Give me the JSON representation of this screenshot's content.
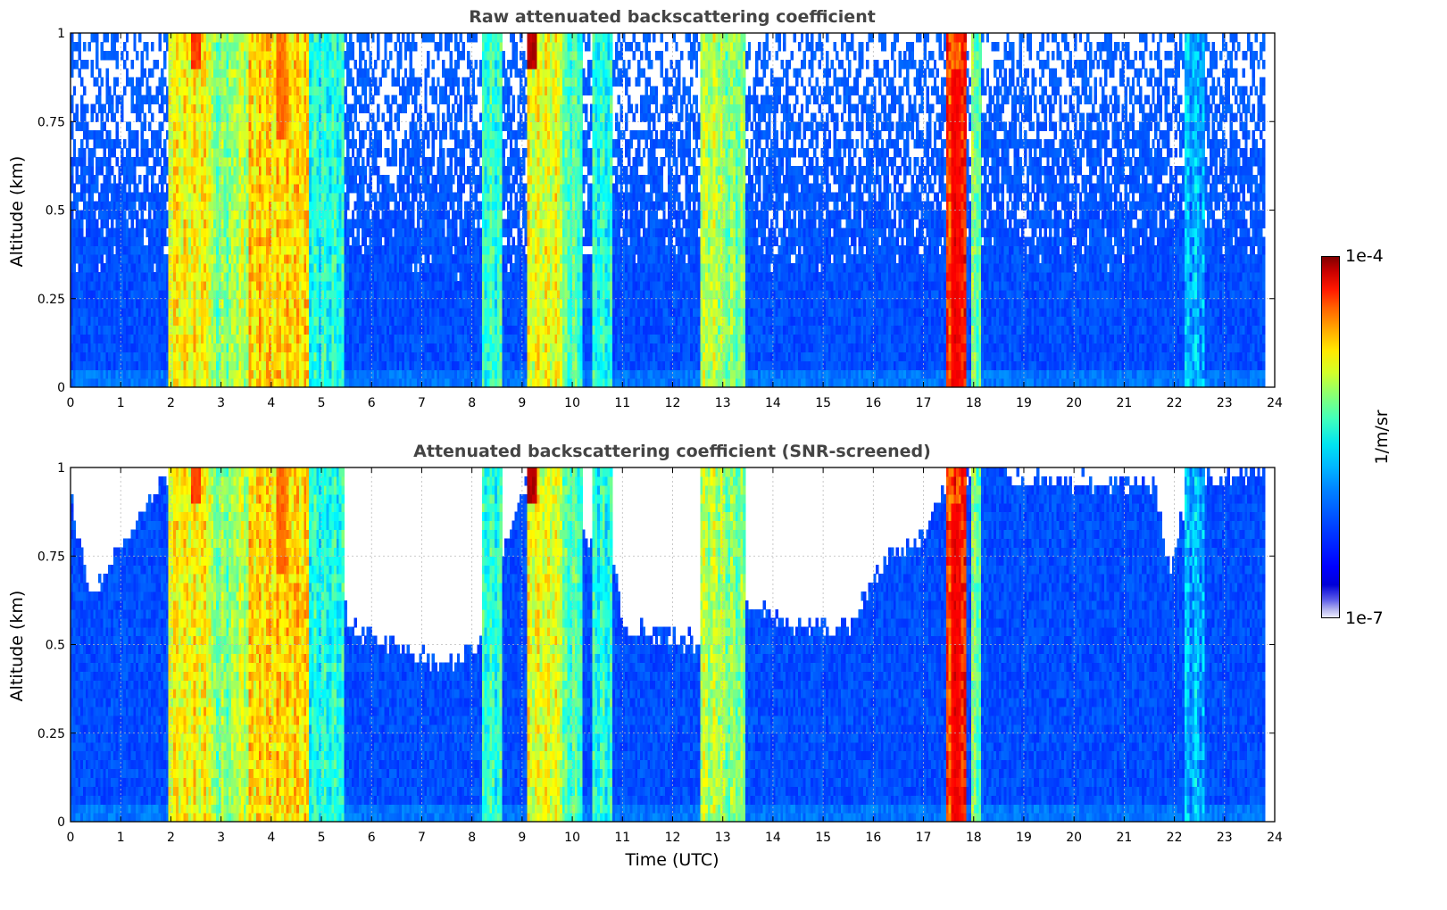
{
  "chart_data": [
    {
      "type": "heatmap",
      "title": "Raw attenuated backscattering coefficient",
      "xlabel": "",
      "ylabel": "Altitude (km)",
      "xlim": [
        0,
        24
      ],
      "ylim": [
        0,
        1
      ],
      "x_ticks": [
        "0",
        "1",
        "2",
        "3",
        "4",
        "5",
        "6",
        "7",
        "8",
        "9",
        "10",
        "11",
        "12",
        "13",
        "14",
        "15",
        "16",
        "17",
        "18",
        "19",
        "20",
        "21",
        "22",
        "23",
        "24"
      ],
      "y_ticks": [
        "0",
        "0.25",
        "0.5",
        "0.75",
        "1"
      ],
      "grid": true,
      "data_end_time": 23.8,
      "screening": "none",
      "events": [
        {
          "start": 1.95,
          "end": 2.8,
          "intensity": 0.62
        },
        {
          "start": 2.8,
          "end": 3.25,
          "intensity": 0.5
        },
        {
          "start": 3.25,
          "end": 3.55,
          "intensity": 0.56
        },
        {
          "start": 3.55,
          "end": 4.75,
          "intensity": 0.66
        },
        {
          "start": 4.75,
          "end": 5.45,
          "intensity": 0.4
        },
        {
          "start": 8.2,
          "end": 8.6,
          "intensity": 0.42
        },
        {
          "start": 9.1,
          "end": 9.8,
          "intensity": 0.6
        },
        {
          "start": 9.8,
          "end": 10.2,
          "intensity": 0.45
        },
        {
          "start": 10.4,
          "end": 10.8,
          "intensity": 0.4
        },
        {
          "start": 12.55,
          "end": 13.0,
          "intensity": 0.55
        },
        {
          "start": 13.0,
          "end": 13.45,
          "intensity": 0.5
        },
        {
          "start": 17.45,
          "end": 17.85,
          "intensity": 0.82
        },
        {
          "start": 17.95,
          "end": 18.15,
          "intensity": 0.48
        },
        {
          "start": 22.2,
          "end": 22.6,
          "intensity": 0.3
        }
      ],
      "hotspots": [
        {
          "time": 2.5,
          "alt_min": 0.9,
          "alt_max": 1.0,
          "intensity": 0.85
        },
        {
          "time": 4.2,
          "alt_min": 0.7,
          "alt_max": 1.0,
          "intensity": 0.8
        },
        {
          "time": 9.2,
          "alt_min": 0.9,
          "alt_max": 1.0,
          "intensity": 0.98
        },
        {
          "time": 17.65,
          "alt_min": 0.0,
          "alt_max": 0.9,
          "intensity": 0.9
        }
      ]
    },
    {
      "type": "heatmap",
      "title": "Attenuated backscattering coefficient (SNR-screened)",
      "xlabel": "Time (UTC)",
      "ylabel": "Altitude (km)",
      "xlim": [
        0,
        24
      ],
      "ylim": [
        0,
        1
      ],
      "x_ticks": [
        "0",
        "1",
        "2",
        "3",
        "4",
        "5",
        "6",
        "7",
        "8",
        "9",
        "10",
        "11",
        "12",
        "13",
        "14",
        "15",
        "16",
        "17",
        "18",
        "19",
        "20",
        "21",
        "22",
        "23",
        "24"
      ],
      "y_ticks": [
        "0",
        "0.25",
        "0.5",
        "0.75",
        "1"
      ],
      "grid": true,
      "data_end_time": 23.8,
      "screening": "snr",
      "screen_threshold_profile": [
        {
          "time": 0.0,
          "alt": 0.92
        },
        {
          "time": 0.4,
          "alt": 0.62
        },
        {
          "time": 1.0,
          "alt": 0.78
        },
        {
          "time": 1.8,
          "alt": 0.95
        },
        {
          "time": 5.4,
          "alt": 0.9
        },
        {
          "time": 5.5,
          "alt": 0.55
        },
        {
          "time": 6.5,
          "alt": 0.5
        },
        {
          "time": 7.5,
          "alt": 0.44
        },
        {
          "time": 8.2,
          "alt": 0.5
        },
        {
          "time": 8.7,
          "alt": 0.8
        },
        {
          "time": 9.0,
          "alt": 0.95
        },
        {
          "time": 10.8,
          "alt": 0.75
        },
        {
          "time": 11.0,
          "alt": 0.55
        },
        {
          "time": 12.6,
          "alt": 0.5
        },
        {
          "time": 13.5,
          "alt": 0.62
        },
        {
          "time": 14.5,
          "alt": 0.55
        },
        {
          "time": 15.5,
          "alt": 0.55
        },
        {
          "time": 16.3,
          "alt": 0.75
        },
        {
          "time": 17.0,
          "alt": 0.8
        },
        {
          "time": 17.4,
          "alt": 0.95
        },
        {
          "time": 18.2,
          "alt": 1.0
        },
        {
          "time": 19.0,
          "alt": 0.97
        },
        {
          "time": 21.6,
          "alt": 0.95
        },
        {
          "time": 21.9,
          "alt": 0.7
        },
        {
          "time": 22.3,
          "alt": 0.95
        },
        {
          "time": 23.8,
          "alt": 1.0
        }
      ]
    }
  ],
  "colorbar": {
    "label": "1/m/sr",
    "min_label": "1e-7",
    "max_label": "1e-4",
    "colormap": "jet"
  }
}
